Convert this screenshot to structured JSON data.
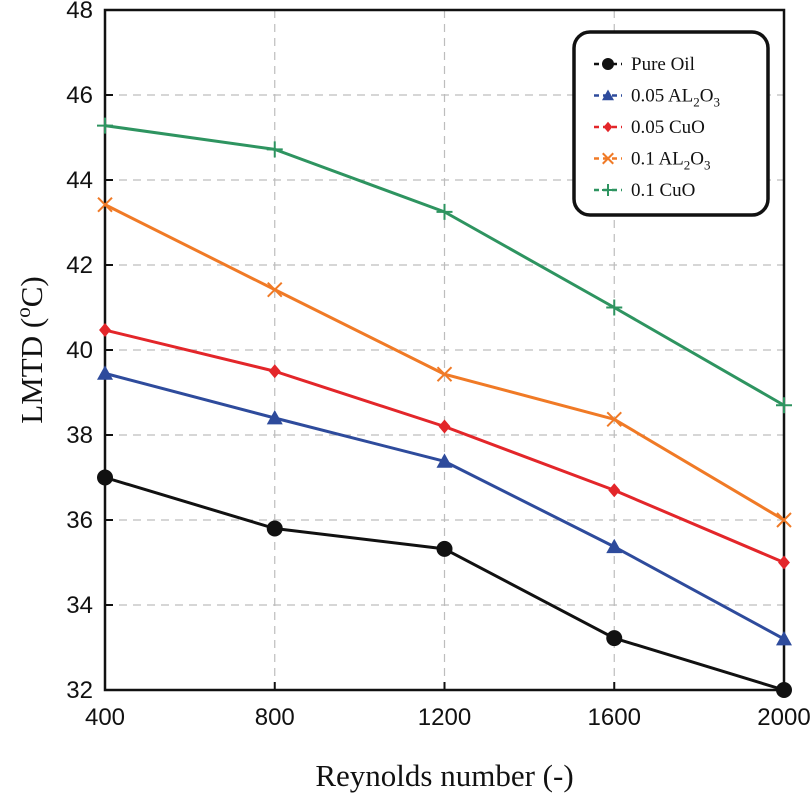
{
  "chart_data": {
    "type": "line",
    "title": "",
    "xlabel": "Reynolds number (-)",
    "ylabel": "LMTD (°C)",
    "ylabel_parts": {
      "text": "LMTD (",
      "sup": "o",
      "unit": "C)"
    },
    "x": [
      400,
      800,
      1200,
      1600,
      2000
    ],
    "xlim": [
      400,
      2000
    ],
    "ylim": [
      32,
      48
    ],
    "xticks": [
      400,
      800,
      1200,
      1600,
      2000
    ],
    "yticks": [
      32,
      34,
      36,
      38,
      40,
      42,
      44,
      46,
      48
    ],
    "grid": true,
    "legend_position": "top-right",
    "series": [
      {
        "name": "Pure Oil",
        "label_parts": [
          "Pure Oil"
        ],
        "color": "#111111",
        "marker": "circle",
        "values": [
          37.0,
          35.8,
          35.32,
          33.22,
          32.0
        ]
      },
      {
        "name": "0.05 AL2O3",
        "label_parts": [
          "0.05 AL",
          "2",
          "O",
          "3"
        ],
        "color": "#2e4b9c",
        "marker": "triangle",
        "values": [
          39.45,
          38.4,
          37.38,
          35.37,
          33.2
        ]
      },
      {
        "name": "0.05 CuO",
        "label_parts": [
          "0.05 CuO"
        ],
        "color": "#e3262a",
        "marker": "diamond",
        "values": [
          40.47,
          39.5,
          38.2,
          36.7,
          35.0
        ]
      },
      {
        "name": "0.1 AL2O3",
        "label_parts": [
          "0.1 AL",
          "2",
          "O",
          "3"
        ],
        "color": "#f07a26",
        "marker": "x",
        "values": [
          43.42,
          41.42,
          39.43,
          38.37,
          36.0
        ]
      },
      {
        "name": "0.1 CuO",
        "label_parts": [
          "0.1 CuO"
        ],
        "color": "#2e9460",
        "marker": "plus",
        "values": [
          45.28,
          44.72,
          43.25,
          41.0,
          38.7
        ]
      }
    ]
  }
}
